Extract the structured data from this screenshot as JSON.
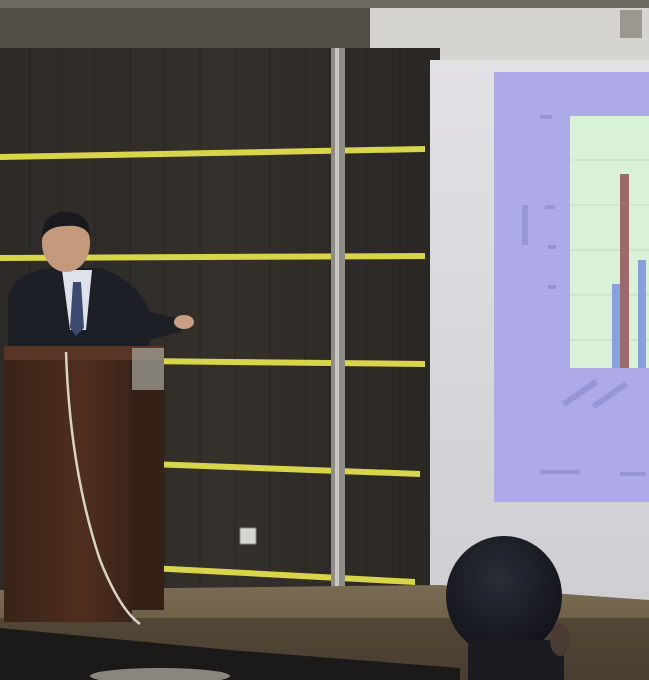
{
  "photo": {
    "subject": "presenter",
    "colors": {
      "wall": "#2b2926",
      "wall_stripe": "#dcd84a",
      "metal_pillar": "#a8a6a0",
      "ceiling": "#5a5650",
      "projection_screen": "#d9d8dc",
      "slide_background": "#a9a6e4",
      "slide_chart_area": "#d9f1d8",
      "slide_bar_tall": "#9c6a6a",
      "slide_bar_short": "#8aa0dc",
      "podium": "#4a2b1d",
      "floor": "#6a5d47",
      "suit": "#1e2028",
      "shirt": "#dde0e8",
      "skin": "#c49a7c",
      "audience_hair": "#15171d"
    }
  }
}
